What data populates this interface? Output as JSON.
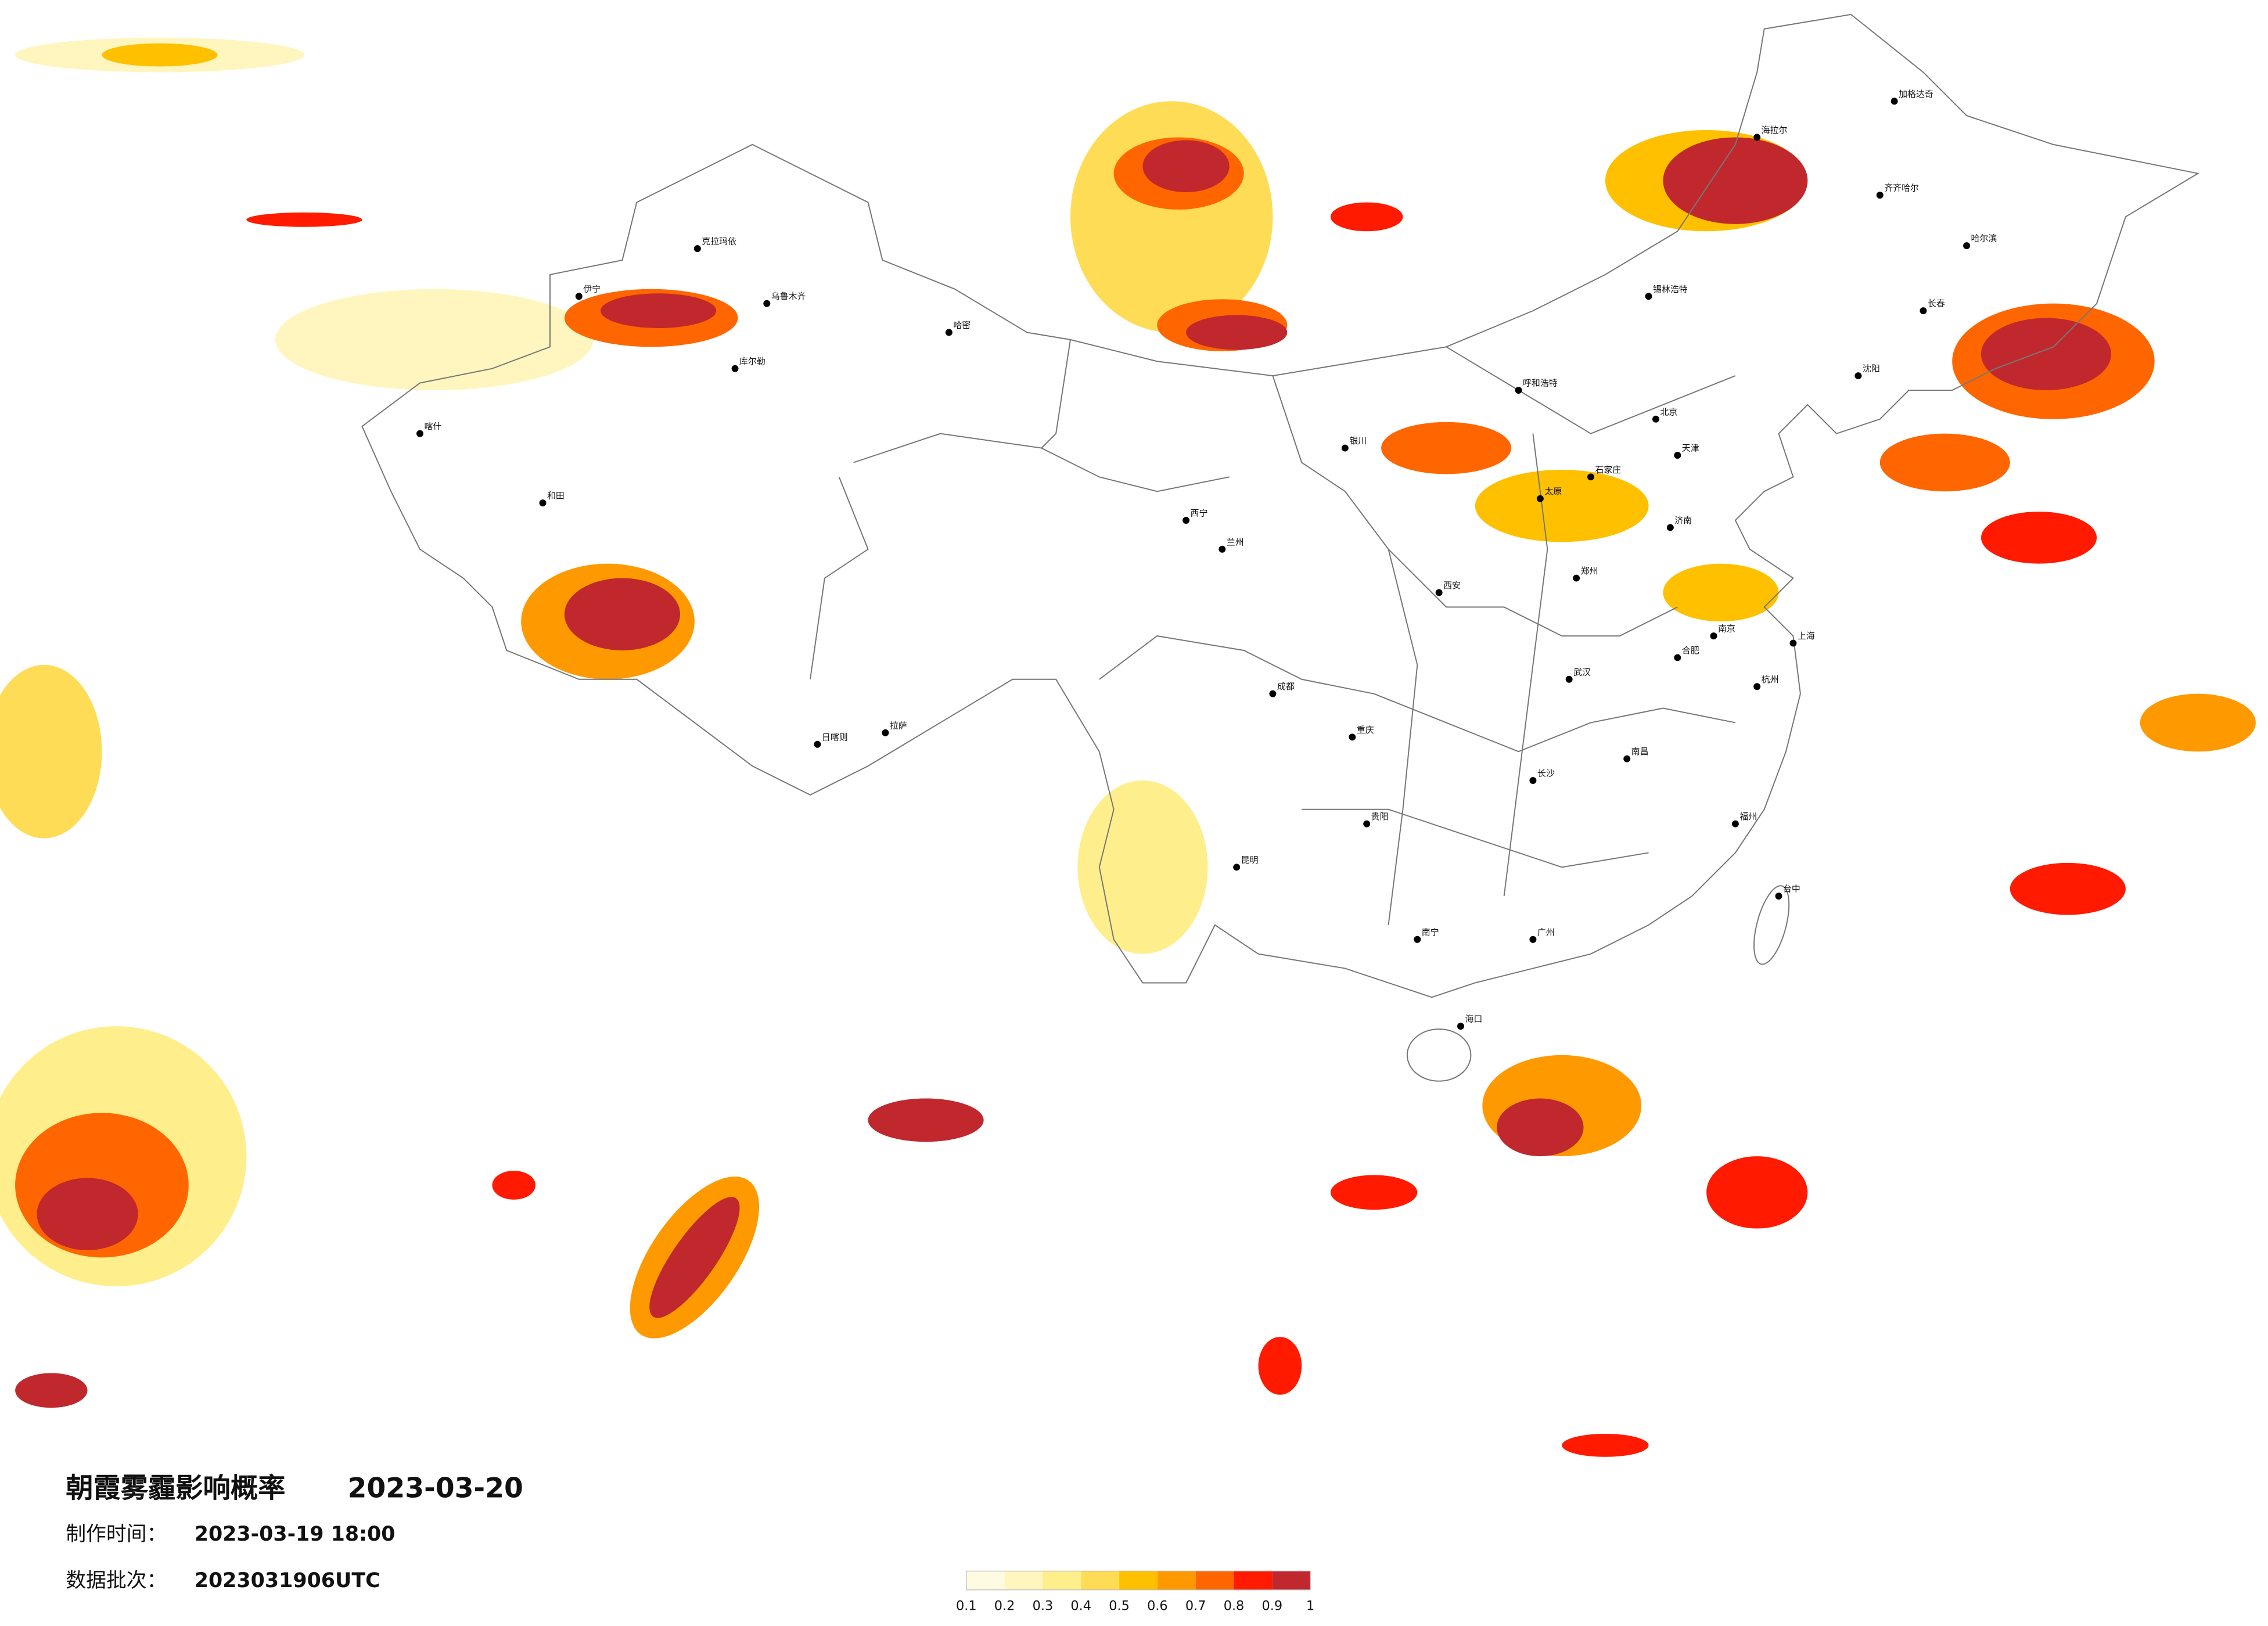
{
  "title": "朝霞雾霾影响概率",
  "date": "2023-03-20",
  "made_label": "制作时间：",
  "made_time": "2023-03-19 18:00",
  "batch_label": "数据批次：",
  "batch": "2023031906UTC",
  "legend": {
    "colors": [
      "#fffbe3",
      "#fff6bf",
      "#ffee8c",
      "#ffdc55",
      "#ffc000",
      "#ff9900",
      "#ff6600",
      "#ff1a00",
      "#c0282d"
    ],
    "ticks": [
      0.1,
      0.2,
      0.3,
      0.4,
      0.5,
      0.6,
      0.7,
      0.8,
      0.9,
      1
    ]
  },
  "cities": [
    "北京",
    "天津",
    "石家庄",
    "太原",
    "呼和浩特",
    "济南",
    "郑州",
    "西安",
    "武汉",
    "长沙",
    "南昌",
    "合肥",
    "南京",
    "上海",
    "杭州",
    "福州",
    "广州",
    "南宁",
    "昆明",
    "贵阳",
    "成都",
    "重庆",
    "兰州",
    "西宁",
    "银川",
    "哈尔滨",
    "长春",
    "沈阳",
    "齐齐哈尔",
    "海口",
    "台中",
    "海拉尔",
    "加格达奇",
    "锡林浩特",
    "拉萨",
    "日喀则",
    "哈密",
    "乌鲁木齐",
    "克拉玛依",
    "库尔勒",
    "和田",
    "喀什",
    "伊宁"
  ]
}
